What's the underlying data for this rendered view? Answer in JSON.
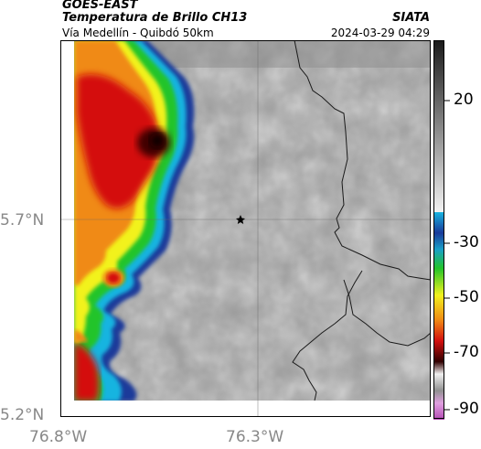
{
  "header": {
    "satellite": "GOES-EAST",
    "product": "Temperatura de Brillo CH13",
    "region": "Vía Medellín - Quibdó 50km",
    "agency": "SIATA",
    "datetime": "2024-03-29 04:29"
  },
  "axes": {
    "lat_labels": [
      "5.7°N",
      "5.2°N"
    ],
    "lon_labels": [
      "76.8°W",
      "76.3°W"
    ]
  },
  "colorbar": {
    "ticks": [
      "20",
      "-30",
      "-50",
      "-70",
      "-90"
    ],
    "colors": {
      "warm_gray_top": "#1a1a1a",
      "warm_gray_bottom": "#f2f2f2",
      "cyan": "#19b4e0",
      "blue": "#1a3a9a",
      "green": "#22c42a",
      "yellow": "#f2f21e",
      "orange": "#f08a14",
      "red": "#d4100e",
      "dark_red": "#300000",
      "magenta": "#b44ab4"
    }
  },
  "map": {
    "marker": "star-icon",
    "background": "grayscale brightness temperature"
  }
}
